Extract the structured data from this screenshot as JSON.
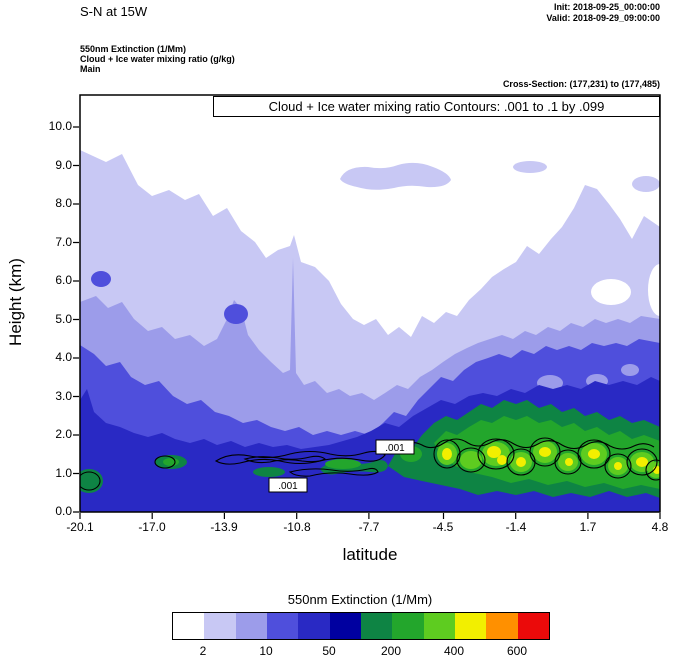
{
  "header": {
    "title": "S-N at 15W",
    "init": "Init: 2018-09-25_00:00:00",
    "valid": "Valid: 2018-09-29_09:00:00",
    "field_lines": [
      "550nm Extinction  (1/Mm)",
      "Cloud + Ice water mixing ratio  (g/kg)",
      "Main"
    ],
    "cross_section": "Cross-Section: (177,231) to (177,485)"
  },
  "plot": {
    "banner": "Cloud + Ice water mixing ratio Contours: .001 to .1 by .099",
    "xlabel": "latitude",
    "ylabel": "Height (km)",
    "x_tick_labels": [
      "-20.1",
      "-17.0",
      "-13.9",
      "-10.8",
      "-7.7",
      "-4.5",
      "-1.4",
      "1.7",
      "4.8"
    ],
    "y_tick_labels": [
      "0.0",
      "1.0",
      "2.0",
      "3.0",
      "4.0",
      "5.0",
      "6.0",
      "7.0",
      "8.0",
      "9.0",
      "10.0"
    ],
    "contour_labels": [
      ".001",
      ".001"
    ]
  },
  "colorbar": {
    "title": "550nm Extinction  (1/Mm)",
    "colors": [
      "#ffffff",
      "#c8c8f4",
      "#9c9cea",
      "#4f4fdc",
      "#2929c4",
      "#0000a0",
      "#0e8444",
      "#23a62c",
      "#5ecc20",
      "#f2ef00",
      "#ff9000",
      "#eb0a0a"
    ],
    "tick_labels": [
      "2",
      "10",
      "50",
      "200",
      "400",
      "600"
    ]
  },
  "chart_data": {
    "type": "heatmap",
    "title": "Cloud + Ice water mixing ratio Contours: .001 to .1 by .099",
    "xlabel": "latitude",
    "ylabel": "Height (km)",
    "xlim": [
      -20.1,
      4.8
    ],
    "ylim": [
      0.0,
      10.8
    ],
    "x_ticks": [
      -20.1,
      -17.0,
      -13.9,
      -10.8,
      -7.7,
      -4.5,
      -1.4,
      1.7,
      4.8
    ],
    "y_ticks": [
      0.0,
      1.0,
      2.0,
      3.0,
      4.0,
      5.0,
      6.0,
      7.0,
      8.0,
      9.0,
      10.0
    ],
    "fill_field": "550nm Extinction (1/Mm)",
    "fill_scale_labels": [
      2,
      10,
      50,
      200,
      400,
      600
    ],
    "overlay_contours": {
      "field": "Cloud + Ice water mixing ratio (g/kg)",
      "levels_from": 0.001,
      "levels_to": 0.1,
      "levels_by": 0.099,
      "labels": [
        {
          "value": 0.001,
          "latitude": -6.7,
          "height_km": 1.7
        },
        {
          "value": 0.001,
          "latitude": -11.2,
          "height_km": 0.65
        }
      ]
    },
    "legend_position": "bottom",
    "grid": false,
    "approx_fill_levels_grid": {
      "note": "colorbar color index (0=white lowest .. 11=red highest) sampled at x_ticks for heights 0-10 km",
      "heights_km": [
        0,
        1,
        2,
        3,
        4,
        5,
        6,
        7,
        8,
        9,
        10
      ],
      "columns": [
        {
          "latitude": -20.1,
          "levels": [
            4,
            6,
            3,
            2,
            2,
            2,
            2,
            1,
            1,
            1,
            0
          ]
        },
        {
          "latitude": -17.0,
          "levels": [
            4,
            4,
            3,
            3,
            2,
            2,
            1,
            1,
            1,
            0,
            0
          ]
        },
        {
          "latitude": -13.9,
          "levels": [
            4,
            4,
            3,
            2,
            2,
            3,
            1,
            1,
            0,
            0,
            0
          ]
        },
        {
          "latitude": -10.8,
          "levels": [
            4,
            4,
            2,
            2,
            2,
            1,
            1,
            0,
            0,
            0,
            0
          ]
        },
        {
          "latitude": -7.7,
          "levels": [
            4,
            6,
            3,
            2,
            2,
            1,
            0,
            0,
            1,
            0,
            0
          ]
        },
        {
          "latitude": -4.5,
          "levels": [
            4,
            8,
            7,
            3,
            2,
            1,
            1,
            0,
            0,
            0,
            0
          ]
        },
        {
          "latitude": -1.4,
          "levels": [
            4,
            9,
            7,
            4,
            3,
            1,
            1,
            0,
            0,
            0,
            0
          ]
        },
        {
          "latitude": 1.7,
          "levels": [
            4,
            8,
            7,
            3,
            3,
            1,
            1,
            1,
            1,
            0,
            0
          ]
        },
        {
          "latitude": 4.8,
          "levels": [
            4,
            9,
            6,
            4,
            3,
            1,
            0,
            1,
            0,
            0,
            0
          ]
        }
      ]
    }
  }
}
